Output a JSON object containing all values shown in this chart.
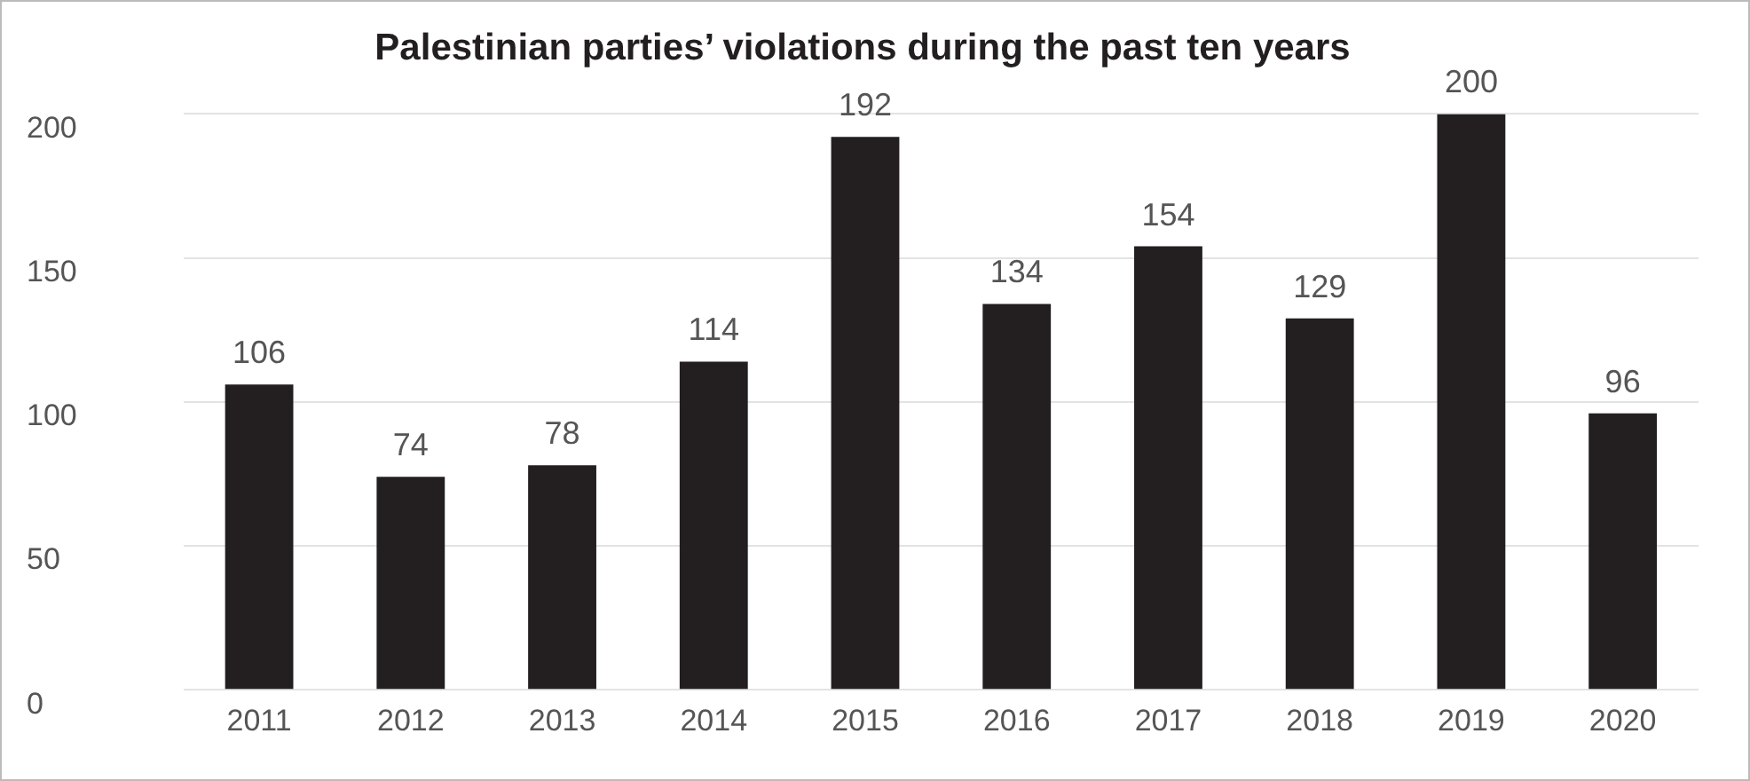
{
  "chart_data": {
    "type": "bar",
    "title": "Palestinian parties’ violations during the past ten years",
    "categories": [
      "2011",
      "2012",
      "2013",
      "2014",
      "2015",
      "2016",
      "2017",
      "2018",
      "2019",
      "2020"
    ],
    "values": [
      106,
      74,
      78,
      114,
      192,
      134,
      154,
      129,
      200,
      96
    ],
    "color": "#231f20",
    "ylim": [
      0,
      200
    ],
    "yticks": [
      0,
      50,
      100,
      150,
      200
    ],
    "grid": "y",
    "data_labels": true,
    "legend": false
  }
}
